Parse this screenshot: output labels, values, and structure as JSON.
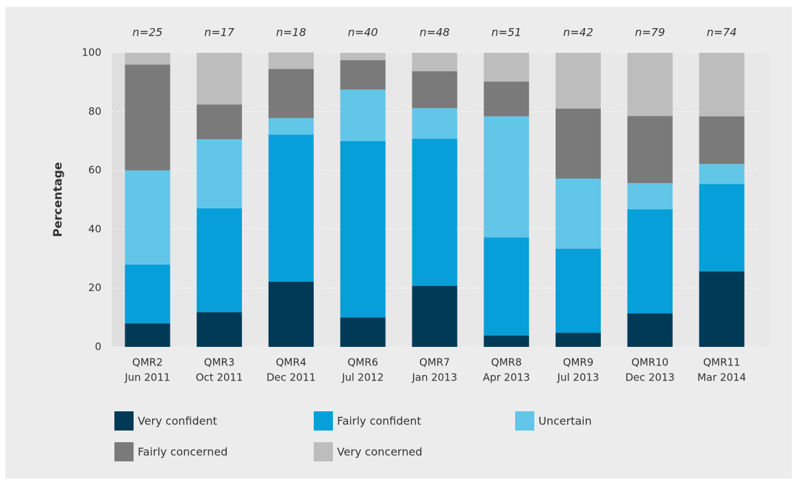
{
  "chart_data": {
    "type": "stacked-bar",
    "y_label": "Percentage",
    "categories": [
      [
        "QMR2",
        "Jun 2011"
      ],
      [
        "QMR3",
        "Oct 2011"
      ],
      [
        "QMR4",
        "Dec 2011"
      ],
      [
        "QMR6",
        "Jul 2012"
      ],
      [
        "QMR7",
        "Jan 2013"
      ],
      [
        "QMR8",
        "Apr 2013"
      ],
      [
        "QMR9",
        "Jul 2013"
      ],
      [
        "QMR10",
        "Dec 2013"
      ],
      [
        "QMR11",
        "Mar 2014"
      ]
    ],
    "sample_sizes": [
      "n=25",
      "n=17",
      "n=18",
      "n=40",
      "n=48",
      "n=51",
      "n=42",
      "n=79",
      "n=74"
    ],
    "series": [
      {
        "name": "Very confident",
        "color": "#003a57",
        "values": [
          8,
          11.8,
          22.2,
          10,
          20.8,
          3.9,
          4.8,
          11.4,
          25.7
        ]
      },
      {
        "name": "Fairly confident",
        "color": "#069fd9",
        "values": [
          20,
          35.3,
          50,
          60,
          50,
          33.3,
          28.6,
          35.4,
          29.7
        ]
      },
      {
        "name": "Uncertain",
        "color": "#62c6e8",
        "values": [
          32,
          23.5,
          5.6,
          17.5,
          10.4,
          41.2,
          23.8,
          8.9,
          6.8
        ]
      },
      {
        "name": "Fairly concerned",
        "color": "#7a7a7a",
        "values": [
          36,
          11.8,
          16.7,
          10,
          12.5,
          11.8,
          23.8,
          22.8,
          16.2
        ]
      },
      {
        "name": "Very concerned",
        "color": "#bdbdbd",
        "values": [
          4,
          17.6,
          5.6,
          2.5,
          6.3,
          9.8,
          19,
          21.5,
          21.6
        ]
      }
    ],
    "ylim": [
      0,
      100
    ],
    "yticks": [
      0,
      20,
      40,
      60,
      80,
      100
    ],
    "grid": true
  }
}
